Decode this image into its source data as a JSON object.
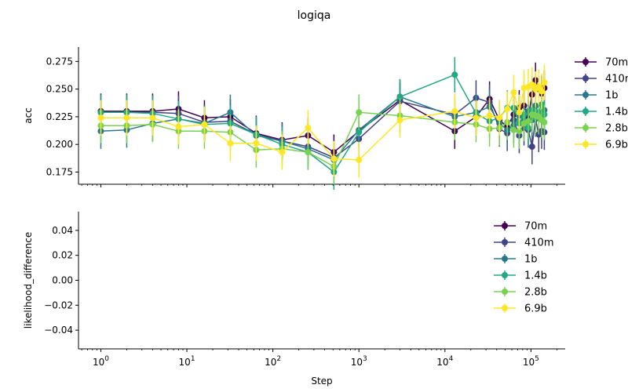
{
  "figure": {
    "title": "logiqa"
  },
  "chart_data": [
    {
      "type": "line",
      "title": "",
      "xlabel": "",
      "ylabel": "acc",
      "xscale": "log",
      "xlim": [
        0.55,
        250000
      ],
      "ylim": [
        0.164,
        0.288
      ],
      "yticks": [
        0.175,
        0.2,
        0.225,
        0.25,
        0.275
      ],
      "ytick_labels": [
        "0.175",
        "0.200",
        "0.225",
        "0.250",
        "0.275"
      ],
      "xticks": [
        1,
        10,
        100,
        1000,
        10000,
        100000
      ],
      "xtick_labels": [
        "10^0",
        "10^1",
        "10^2",
        "10^3",
        "10^4",
        "10^5"
      ],
      "legend": "outside-right",
      "grid": false,
      "x": [
        1,
        2,
        4,
        8,
        16,
        32,
        64,
        128,
        256,
        512,
        1000,
        3000,
        13000,
        23000,
        33000,
        43000,
        53000,
        63000,
        73000,
        83000,
        93000,
        103000,
        113000,
        123000,
        133000,
        143000
      ],
      "series": [
        {
          "name": "70m",
          "color": "#440154",
          "values": [
            0.23,
            0.23,
            0.23,
            0.232,
            0.224,
            0.225,
            0.21,
            0.204,
            0.208,
            0.193,
            0.212,
            0.24,
            0.212,
            0.225,
            0.241,
            0.222,
            0.216,
            0.227,
            0.233,
            0.235,
            0.224,
            0.245,
            0.258,
            0.25,
            0.246,
            0.251
          ],
          "err": 0.016
        },
        {
          "name": "410m",
          "color": "#414487",
          "values": [
            0.229,
            0.229,
            0.229,
            0.228,
            0.22,
            0.221,
            0.209,
            0.203,
            0.198,
            0.188,
            0.205,
            0.239,
            0.227,
            0.242,
            0.238,
            0.214,
            0.21,
            0.222,
            0.208,
            0.215,
            0.213,
            0.198,
            0.223,
            0.209,
            0.212,
            0.211
          ],
          "err": 0.016
        },
        {
          "name": "1b",
          "color": "#2a788e",
          "values": [
            0.212,
            0.213,
            0.219,
            0.223,
            0.219,
            0.229,
            0.208,
            0.203,
            0.196,
            0.186,
            0.213,
            0.243,
            0.225,
            0.229,
            0.234,
            0.219,
            0.213,
            0.217,
            0.226,
            0.221,
            0.23,
            0.222,
            0.235,
            0.227,
            0.225,
            0.231
          ],
          "err": 0.016
        },
        {
          "name": "1.4b",
          "color": "#22a884",
          "values": [
            0.229,
            0.229,
            0.228,
            0.223,
            0.218,
            0.219,
            0.209,
            0.2,
            0.193,
            0.175,
            0.211,
            0.243,
            0.263,
            0.228,
            0.221,
            0.224,
            0.233,
            0.233,
            0.219,
            0.227,
            0.215,
            0.231,
            0.224,
            0.229,
            0.236,
            0.227
          ],
          "err": 0.016
        },
        {
          "name": "2.8b",
          "color": "#7ad151",
          "values": [
            0.217,
            0.217,
            0.218,
            0.212,
            0.212,
            0.211,
            0.195,
            0.196,
            0.193,
            0.18,
            0.229,
            0.226,
            0.22,
            0.218,
            0.214,
            0.215,
            0.22,
            0.213,
            0.212,
            0.219,
            0.221,
            0.227,
            0.226,
            0.225,
            0.222,
            0.22
          ],
          "err": 0.016
        },
        {
          "name": "6.9b",
          "color": "#fde725",
          "values": [
            0.224,
            0.224,
            0.224,
            0.216,
            0.218,
            0.201,
            0.201,
            0.193,
            0.215,
            0.187,
            0.186,
            0.222,
            0.23,
            0.224,
            0.226,
            0.224,
            0.232,
            0.247,
            0.229,
            0.251,
            0.252,
            0.254,
            0.25,
            0.252,
            0.248,
            0.256
          ],
          "err": 0.016
        }
      ]
    },
    {
      "type": "line",
      "title": "",
      "xlabel": "Step",
      "ylabel": "likelihood_difference",
      "xscale": "log",
      "xlim": [
        0.55,
        250000
      ],
      "ylim": [
        -0.055,
        0.055
      ],
      "yticks": [
        -0.04,
        -0.02,
        0.0,
        0.02,
        0.04
      ],
      "ytick_labels": [
        "−0.04",
        "−0.02",
        "0.00",
        "0.02",
        "0.04"
      ],
      "xticks": [
        1,
        10,
        100,
        1000,
        10000,
        100000
      ],
      "xtick_labels": [
        "10^0",
        "10^1",
        "10^2",
        "10^3",
        "10^4",
        "10^5"
      ],
      "legend": "upper-right",
      "grid": false,
      "series": [
        {
          "name": "70m",
          "color": "#440154",
          "values": []
        },
        {
          "name": "410m",
          "color": "#414487",
          "values": []
        },
        {
          "name": "1b",
          "color": "#2a788e",
          "values": []
        },
        {
          "name": "1.4b",
          "color": "#22a884",
          "values": []
        },
        {
          "name": "2.8b",
          "color": "#7ad151",
          "values": []
        },
        {
          "name": "6.9b",
          "color": "#fde725",
          "values": []
        }
      ]
    }
  ]
}
